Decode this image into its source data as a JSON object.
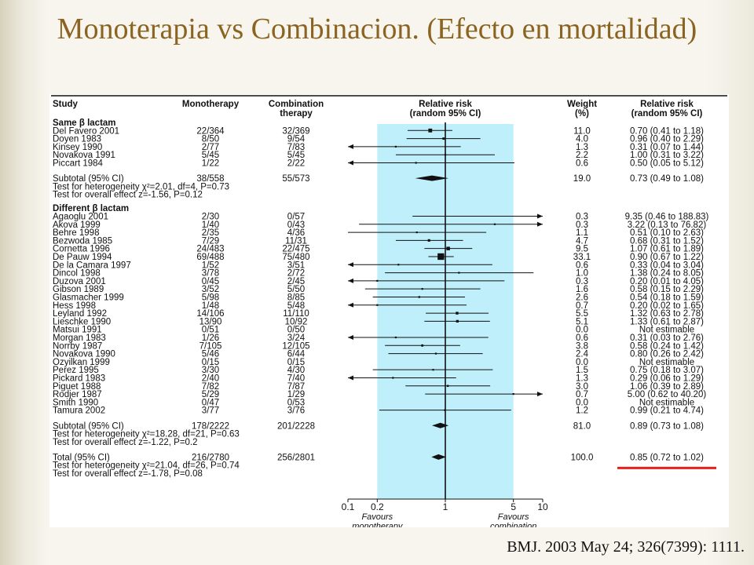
{
  "slide": {
    "title": "Monoterapia vs Combinacion. (Efecto en mortalidad)",
    "citation": "BMJ. 2003 May 24; 326(7399): 1111."
  },
  "colors": {
    "title": "#8a6420",
    "ci_panel": "#bfeffa",
    "highlight": "#e8201c"
  },
  "chart_data": {
    "type": "forest",
    "scale": "log",
    "xlim": [
      0.1,
      10
    ],
    "x_ticks": [
      0.1,
      0.2,
      1,
      5,
      10
    ],
    "x_tick_labels": [
      "0.1",
      "0.2",
      "1",
      "5",
      "10"
    ],
    "x_labels": {
      "left": "Favours\nmonotherapy",
      "right": "Favours\ncombination"
    },
    "headers": {
      "study": "Study",
      "mono": "Monotherapy",
      "combo": "Combination\ntherapy",
      "rr": "Relative risk\n(random 95% CI)",
      "weight": "Weight\n(%)",
      "rr_text": "Relative risk\n(random 95% CI)"
    },
    "groups": [
      {
        "title": "Same β lactam",
        "studies": [
          {
            "name": "Del Favero 2001",
            "mono": "22/364",
            "combo": "32/369",
            "rr": 0.7,
            "lo": 0.41,
            "hi": 1.18,
            "weight": "11.0",
            "ci_text": "0.70 (0.41 to 1.18)"
          },
          {
            "name": "Doyen 1983",
            "mono": "8/50",
            "combo": "9/54",
            "rr": 0.96,
            "lo": 0.4,
            "hi": 2.29,
            "weight": "4.0",
            "ci_text": "0.96 (0.40 to 2.29)"
          },
          {
            "name": "Kinsey 1990",
            "mono": "2/77",
            "combo": "7/83",
            "rr": 0.31,
            "lo": 0.07,
            "hi": 1.44,
            "weight": "1.3",
            "ci_text": "0.31 (0.07 to 1.44)"
          },
          {
            "name": "Novakova 1991",
            "mono": "5/45",
            "combo": "5/45",
            "rr": 1.0,
            "lo": 0.31,
            "hi": 3.22,
            "weight": "2.2",
            "ci_text": "1.00 (0.31 to 3.22)"
          },
          {
            "name": "Piccart 1984",
            "mono": "1/22",
            "combo": "2/22",
            "rr": 0.5,
            "lo": 0.05,
            "hi": 5.12,
            "weight": "0.6",
            "ci_text": "0.50 (0.05 to 5.12)"
          }
        ],
        "subtotal": {
          "label": "Subtotal (95% CI)",
          "mono": "38/558",
          "combo": "55/573",
          "rr": 0.73,
          "lo": 0.49,
          "hi": 1.08,
          "weight": "19.0",
          "ci_text": "0.73 (0.49 to 1.08)"
        },
        "heterogeneity": "Test for heterogeneity χ²=2.01, df=4, P=0.73",
        "overall": "Test for overall effect z=-1.56, P=0.12"
      },
      {
        "title": "Different β lactam",
        "studies": [
          {
            "name": "Agaoglu 2001",
            "mono": "2/30",
            "combo": "0/57",
            "rr": 9.35,
            "lo": 0.46,
            "hi": 188.83,
            "weight": "0.3",
            "ci_text": "9.35 (0.46 to 188.83)"
          },
          {
            "name": "Akova 1999",
            "mono": "1/40",
            "combo": "0/43",
            "rr": 3.22,
            "lo": 0.13,
            "hi": 76.82,
            "weight": "0.3",
            "ci_text": "3.22 (0.13 to 76.82)"
          },
          {
            "name": "Behre 1998",
            "mono": "2/35",
            "combo": "4/36",
            "rr": 0.51,
            "lo": 0.1,
            "hi": 2.63,
            "weight": "1.1",
            "ci_text": "0.51 (0.10 to 2.63)"
          },
          {
            "name": "Bezwoda 1985",
            "mono": "7/29",
            "combo": "11/31",
            "rr": 0.68,
            "lo": 0.31,
            "hi": 1.52,
            "weight": "4.7",
            "ci_text": "0.68 (0.31 to 1.52)"
          },
          {
            "name": "Cornetta 1996",
            "mono": "24/483",
            "combo": "22/475",
            "rr": 1.07,
            "lo": 0.61,
            "hi": 1.89,
            "weight": "9.5",
            "ci_text": "1.07 (0.61 to 1.89)"
          },
          {
            "name": "De Pauw 1994",
            "mono": "69/488",
            "combo": "75/480",
            "rr": 0.9,
            "lo": 0.67,
            "hi": 1.22,
            "weight": "33.1",
            "ci_text": "0.90 (0.67 to 1.22)"
          },
          {
            "name": "De la Camara 1997",
            "mono": "1/52",
            "combo": "3/51",
            "rr": 0.33,
            "lo": 0.04,
            "hi": 3.04,
            "weight": "0.6",
            "ci_text": "0.33 (0.04 to 3.04)"
          },
          {
            "name": "Dincol 1998",
            "mono": "3/78",
            "combo": "2/72",
            "rr": 1.38,
            "lo": 0.24,
            "hi": 8.05,
            "weight": "1.0",
            "ci_text": "1.38 (0.24 to 8.05)"
          },
          {
            "name": "Duzova 2001",
            "mono": "0/45",
            "combo": "2/45",
            "rr": 0.2,
            "lo": 0.01,
            "hi": 4.05,
            "weight": "0.3",
            "ci_text": "0.20 (0.01 to 4.05)"
          },
          {
            "name": "Gibson 1989",
            "mono": "3/52",
            "combo": "5/50",
            "rr": 0.58,
            "lo": 0.15,
            "hi": 2.29,
            "weight": "1.6",
            "ci_text": "0.58 (0.15 to 2.29)"
          },
          {
            "name": "Glasmacher 1999",
            "mono": "5/98",
            "combo": "8/85",
            "rr": 0.54,
            "lo": 0.18,
            "hi": 1.59,
            "weight": "2.6",
            "ci_text": "0.54 (0.18 to 1.59)"
          },
          {
            "name": "Hess 1998",
            "mono": "1/48",
            "combo": "5/48",
            "rr": 0.2,
            "lo": 0.02,
            "hi": 1.65,
            "weight": "0.7",
            "ci_text": "0.20 (0.02 to 1.65)"
          },
          {
            "name": "Leyland 1992",
            "mono": "14/106",
            "combo": "11/110",
            "rr": 1.32,
            "lo": 0.63,
            "hi": 2.78,
            "weight": "5.5",
            "ci_text": "1.32 (0.63 to 2.78)"
          },
          {
            "name": "Lieschke 1990",
            "mono": "13/90",
            "combo": "10/92",
            "rr": 1.33,
            "lo": 0.61,
            "hi": 2.87,
            "weight": "5.1",
            "ci_text": "1.33 (0.61 to 2.87)"
          },
          {
            "name": "Matsui 1991",
            "mono": "0/51",
            "combo": "0/50",
            "rr": null,
            "lo": null,
            "hi": null,
            "weight": "0.0",
            "ci_text": "Not estimable"
          },
          {
            "name": "Morgan 1983",
            "mono": "1/26",
            "combo": "3/24",
            "rr": 0.31,
            "lo": 0.03,
            "hi": 2.76,
            "weight": "0.6",
            "ci_text": "0.31 (0.03 to 2.76)"
          },
          {
            "name": "Norrby 1987",
            "mono": "7/105",
            "combo": "12/105",
            "rr": 0.58,
            "lo": 0.24,
            "hi": 1.42,
            "weight": "3.8",
            "ci_text": "0.58 (0.24 to 1.42)"
          },
          {
            "name": "Novakova 1990",
            "mono": "5/46",
            "combo": "6/44",
            "rr": 0.8,
            "lo": 0.26,
            "hi": 2.42,
            "weight": "2.4",
            "ci_text": "0.80 (0.26 to 2.42)"
          },
          {
            "name": "Ozyilkan 1999",
            "mono": "0/15",
            "combo": "0/15",
            "rr": null,
            "lo": null,
            "hi": null,
            "weight": "0.0",
            "ci_text": "Not estimable"
          },
          {
            "name": "Perez 1995",
            "mono": "3/30",
            "combo": "4/30",
            "rr": 0.75,
            "lo": 0.18,
            "hi": 3.07,
            "weight": "1.5",
            "ci_text": "0.75 (0.18 to 3.07)"
          },
          {
            "name": "Pickard 1983",
            "mono": "2/40",
            "combo": "7/40",
            "rr": 0.29,
            "lo": 0.06,
            "hi": 1.29,
            "weight": "1.3",
            "ci_text": "0.29 (0.06 to 1.29)"
          },
          {
            "name": "Piguet 1988",
            "mono": "7/82",
            "combo": "7/87",
            "rr": 1.06,
            "lo": 0.39,
            "hi": 2.89,
            "weight": "3.0",
            "ci_text": "1.06 (0.39 to 2.89)"
          },
          {
            "name": "Rodjer 1987",
            "mono": "5/29",
            "combo": "1/29",
            "rr": 5.0,
            "lo": 0.62,
            "hi": 40.2,
            "weight": "0.7",
            "ci_text": "5.00 (0.62 to 40.20)"
          },
          {
            "name": "Smith 1990",
            "mono": "0/47",
            "combo": "0/53",
            "rr": null,
            "lo": null,
            "hi": null,
            "weight": "0.0",
            "ci_text": "Not estimable"
          },
          {
            "name": "Tamura 2002",
            "mono": "3/77",
            "combo": "3/76",
            "rr": 0.99,
            "lo": 0.21,
            "hi": 4.74,
            "weight": "1.2",
            "ci_text": "0.99 (0.21 to 4.74)"
          }
        ],
        "subtotal": {
          "label": "Subtotal (95% CI)",
          "mono": "178/2222",
          "combo": "201/2228",
          "rr": 0.89,
          "lo": 0.73,
          "hi": 1.08,
          "weight": "81.0",
          "ci_text": "0.89 (0.73 to 1.08)"
        },
        "heterogeneity": "Test for heterogeneity χ²=18.28, df=21, P=0.63",
        "overall": "Test for overall effect z=-1.22, P=0.2"
      }
    ],
    "total": {
      "label": "Total (95% CI)",
      "mono": "216/2780",
      "combo": "256/2801",
      "rr": 0.85,
      "lo": 0.72,
      "hi": 1.02,
      "weight": "100.0",
      "ci_text": "0.85 (0.72 to 1.02)"
    },
    "total_heterogeneity": "Test for heterogeneity χ²=21.04, df=26, P=0.74",
    "total_overall": "Test for overall effect z=-1.78, P=0.08"
  }
}
